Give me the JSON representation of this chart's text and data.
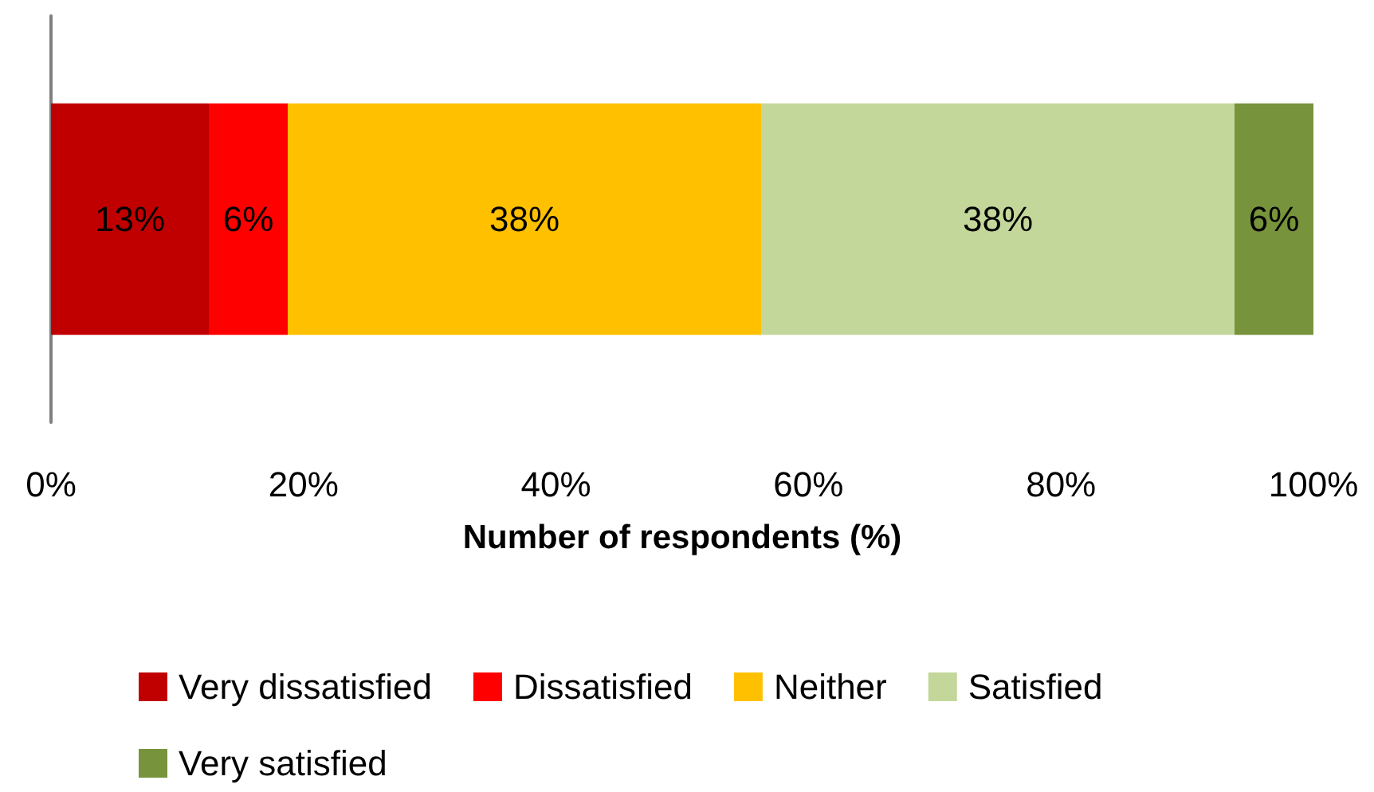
{
  "chart_data": {
    "type": "bar",
    "orientation": "horizontal",
    "stacked": true,
    "xlabel": "Number of respondents (%)",
    "categories": [
      null
    ],
    "series": [
      {
        "name": "Very dissatisfied",
        "color": "#c00000",
        "values": [
          12.5
        ],
        "value_labels": [
          "13%"
        ]
      },
      {
        "name": "Dissatisfied",
        "color": "#ff0000",
        "values": [
          6.25
        ],
        "value_labels": [
          "6%"
        ]
      },
      {
        "name": "Neither",
        "color": "#ffc000",
        "values": [
          37.5
        ],
        "value_labels": [
          "38%"
        ]
      },
      {
        "name": "Satisfied",
        "color": "#c4d79b",
        "values": [
          37.5
        ],
        "value_labels": [
          "38%"
        ]
      },
      {
        "name": "Very satisfied",
        "color": "#77933c",
        "values": [
          6.25
        ],
        "value_labels": [
          "6%"
        ]
      }
    ],
    "xlim": [
      0,
      100
    ],
    "xticks": [
      {
        "value": 0,
        "label": "0%"
      },
      {
        "value": 20,
        "label": "20%"
      },
      {
        "value": 40,
        "label": "40%"
      },
      {
        "value": 60,
        "label": "60%"
      },
      {
        "value": 80,
        "label": "80%"
      },
      {
        "value": 100,
        "label": "100%"
      }
    ],
    "grid": false,
    "legend": "bottom"
  }
}
